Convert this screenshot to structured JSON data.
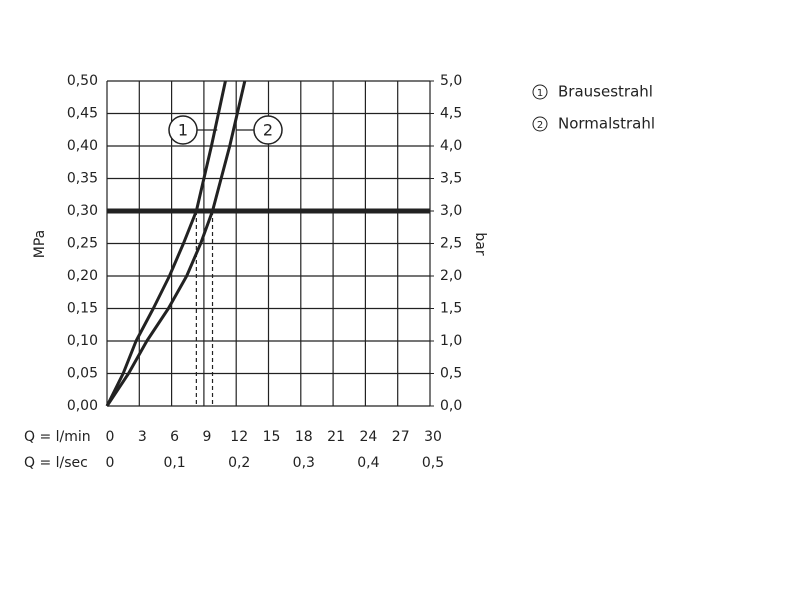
{
  "chart_data": {
    "type": "line",
    "y_label": "MPa",
    "y2_label": "bar",
    "x_label": "Q = l/min",
    "x2_label": "Q = l/sec",
    "xlim": [
      0,
      30
    ],
    "xticks": [
      0,
      3,
      6,
      9,
      12,
      15,
      18,
      21,
      24,
      27,
      30
    ],
    "x2lim": [
      0,
      0.5
    ],
    "x2ticks": [
      0,
      {
        "value": 0.1,
        "label": "0,1"
      },
      {
        "value": 0.2,
        "label": "0,2"
      },
      {
        "value": 0.3,
        "label": "0,3"
      },
      {
        "value": 0.4,
        "label": "0,4"
      },
      {
        "value": 0.5,
        "label": "0,5"
      }
    ],
    "ylim": [
      0,
      0.5
    ],
    "yticks": [
      {
        "value": 0,
        "label": "0,00"
      },
      {
        "value": 0.05,
        "label": "0,05"
      },
      {
        "value": 0.1,
        "label": "0,10"
      },
      {
        "value": 0.15,
        "label": "0,15"
      },
      {
        "value": 0.2,
        "label": "0,20"
      },
      {
        "value": 0.25,
        "label": "0,25"
      },
      {
        "value": 0.3,
        "label": "0,30"
      },
      {
        "value": 0.35,
        "label": "0,35"
      },
      {
        "value": 0.4,
        "label": "0,40"
      },
      {
        "value": 0.45,
        "label": "0,45"
      },
      {
        "value": 0.5,
        "label": "0,50"
      }
    ],
    "y2lim": [
      0,
      5
    ],
    "y2ticks": [
      {
        "value": 0,
        "label": "0,0"
      },
      {
        "value": 0.5,
        "label": "0,5"
      },
      {
        "value": 1,
        "label": "1,0"
      },
      {
        "value": 1.5,
        "label": "1,5"
      },
      {
        "value": 2,
        "label": "2,0"
      },
      {
        "value": 2.5,
        "label": "2,5"
      },
      {
        "value": 3,
        "label": "3,0"
      },
      {
        "value": 3.5,
        "label": "3,5"
      },
      {
        "value": 4,
        "label": "4,0"
      },
      {
        "value": 4.5,
        "label": "4,5"
      },
      {
        "value": 5,
        "label": "5,0"
      }
    ],
    "grid": true,
    "reference_line": 0.3,
    "dashed_x": [
      8.3,
      9.8
    ],
    "series": [
      {
        "name": "Brausestrahl",
        "marker": "1",
        "color": "#222222",
        "x": [
          0,
          1.5,
          2.7,
          4.3,
          5.8,
          7.1,
          8.3,
          9.7,
          11.0
        ],
        "values": [
          0,
          0.05,
          0.1,
          0.15,
          0.2,
          0.25,
          0.3,
          0.4,
          0.5
        ]
      },
      {
        "name": "Normalstrahl",
        "marker": "2",
        "color": "#222222",
        "x": [
          0,
          2.0,
          3.7,
          5.7,
          7.4,
          8.7,
          9.8,
          11.4,
          12.8
        ],
        "values": [
          0,
          0.05,
          0.1,
          0.15,
          0.2,
          0.25,
          0.3,
          0.4,
          0.5
        ]
      }
    ]
  }
}
